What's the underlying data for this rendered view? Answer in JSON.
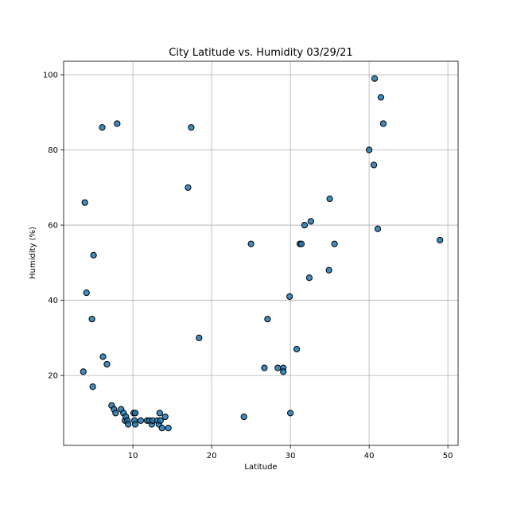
{
  "chart_data": {
    "type": "scatter",
    "title": "City Latitude vs. Humidity 03/29/21",
    "xlabel": "Latitude",
    "ylabel": "Humidity (%)",
    "xlim": [
      1.2,
      51.3
    ],
    "ylim": [
      1.4,
      103.6
    ],
    "xticks": [
      10,
      20,
      30,
      40,
      50
    ],
    "yticks": [
      20,
      40,
      60,
      80,
      100
    ],
    "grid": true,
    "marker_fill": "#1f77b4",
    "marker_edge": "#000000",
    "points": [
      {
        "x": 3.7,
        "y": 21
      },
      {
        "x": 3.9,
        "y": 66
      },
      {
        "x": 4.1,
        "y": 42
      },
      {
        "x": 4.8,
        "y": 35
      },
      {
        "x": 4.9,
        "y": 17
      },
      {
        "x": 5.0,
        "y": 52
      },
      {
        "x": 6.1,
        "y": 86
      },
      {
        "x": 6.2,
        "y": 25
      },
      {
        "x": 6.7,
        "y": 23
      },
      {
        "x": 7.3,
        "y": 12
      },
      {
        "x": 7.6,
        "y": 11
      },
      {
        "x": 7.8,
        "y": 10
      },
      {
        "x": 8.0,
        "y": 87
      },
      {
        "x": 8.5,
        "y": 11
      },
      {
        "x": 8.8,
        "y": 10
      },
      {
        "x": 9.0,
        "y": 8
      },
      {
        "x": 9.1,
        "y": 9
      },
      {
        "x": 9.3,
        "y": 8
      },
      {
        "x": 9.4,
        "y": 7
      },
      {
        "x": 10.1,
        "y": 10
      },
      {
        "x": 10.2,
        "y": 8
      },
      {
        "x": 10.3,
        "y": 7
      },
      {
        "x": 10.3,
        "y": 10
      },
      {
        "x": 11.0,
        "y": 8
      },
      {
        "x": 11.8,
        "y": 8
      },
      {
        "x": 12.1,
        "y": 8
      },
      {
        "x": 12.4,
        "y": 7
      },
      {
        "x": 12.5,
        "y": 8
      },
      {
        "x": 13.1,
        "y": 8
      },
      {
        "x": 13.3,
        "y": 7
      },
      {
        "x": 13.4,
        "y": 10
      },
      {
        "x": 13.5,
        "y": 8
      },
      {
        "x": 13.7,
        "y": 6
      },
      {
        "x": 14.1,
        "y": 9
      },
      {
        "x": 14.5,
        "y": 6
      },
      {
        "x": 17.0,
        "y": 70
      },
      {
        "x": 17.4,
        "y": 86
      },
      {
        "x": 18.4,
        "y": 30
      },
      {
        "x": 24.1,
        "y": 9
      },
      {
        "x": 25.0,
        "y": 55
      },
      {
        "x": 26.7,
        "y": 22
      },
      {
        "x": 27.1,
        "y": 35
      },
      {
        "x": 28.4,
        "y": 22
      },
      {
        "x": 29.1,
        "y": 22
      },
      {
        "x": 29.1,
        "y": 21
      },
      {
        "x": 29.9,
        "y": 41
      },
      {
        "x": 30.0,
        "y": 10
      },
      {
        "x": 30.8,
        "y": 27
      },
      {
        "x": 31.2,
        "y": 55
      },
      {
        "x": 31.4,
        "y": 55
      },
      {
        "x": 31.8,
        "y": 60
      },
      {
        "x": 32.4,
        "y": 46
      },
      {
        "x": 32.6,
        "y": 61
      },
      {
        "x": 34.9,
        "y": 48
      },
      {
        "x": 35.0,
        "y": 67
      },
      {
        "x": 35.6,
        "y": 55
      },
      {
        "x": 40.0,
        "y": 80
      },
      {
        "x": 40.6,
        "y": 76
      },
      {
        "x": 40.7,
        "y": 99
      },
      {
        "x": 41.1,
        "y": 59
      },
      {
        "x": 41.5,
        "y": 94
      },
      {
        "x": 41.8,
        "y": 87
      },
      {
        "x": 49.0,
        "y": 56
      }
    ]
  }
}
